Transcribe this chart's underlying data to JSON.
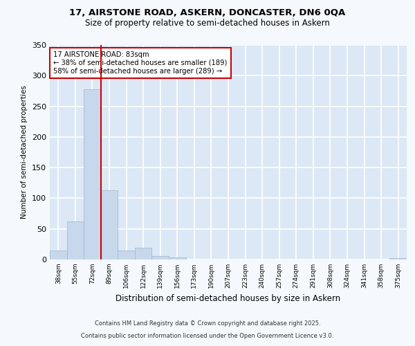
{
  "title1": "17, AIRSTONE ROAD, ASKERN, DONCASTER, DN6 0QA",
  "title2": "Size of property relative to semi-detached houses in Askern",
  "xlabel": "Distribution of semi-detached houses by size in Askern",
  "ylabel": "Number of semi-detached properties",
  "bin_labels": [
    "38sqm",
    "55sqm",
    "72sqm",
    "89sqm",
    "106sqm",
    "122sqm",
    "139sqm",
    "156sqm",
    "173sqm",
    "190sqm",
    "207sqm",
    "223sqm",
    "240sqm",
    "257sqm",
    "274sqm",
    "291sqm",
    "308sqm",
    "324sqm",
    "341sqm",
    "358sqm",
    "375sqm"
  ],
  "bar_heights": [
    15,
    62,
    278,
    113,
    15,
    19,
    6,
    3,
    0,
    0,
    0,
    0,
    0,
    0,
    0,
    0,
    0,
    0,
    0,
    0,
    2
  ],
  "bar_color": "#c8d8ec",
  "bar_edge_color": "#9ab5d0",
  "vline_x": 2.5,
  "vline_color": "#cc0000",
  "annotation_text": "17 AIRSTONE ROAD: 83sqm\n← 38% of semi-detached houses are smaller (189)\n58% of semi-detached houses are larger (289) →",
  "annotation_box_color": "#ffffff",
  "annotation_box_edge": "#cc0000",
  "ylim": [
    0,
    350
  ],
  "yticks": [
    0,
    50,
    100,
    150,
    200,
    250,
    300,
    350
  ],
  "background_color": "#dce8f5",
  "grid_color": "#ffffff",
  "fig_background": "#f5f8fc",
  "footer_line1": "Contains HM Land Registry data © Crown copyright and database right 2025.",
  "footer_line2": "Contains public sector information licensed under the Open Government Licence v3.0."
}
